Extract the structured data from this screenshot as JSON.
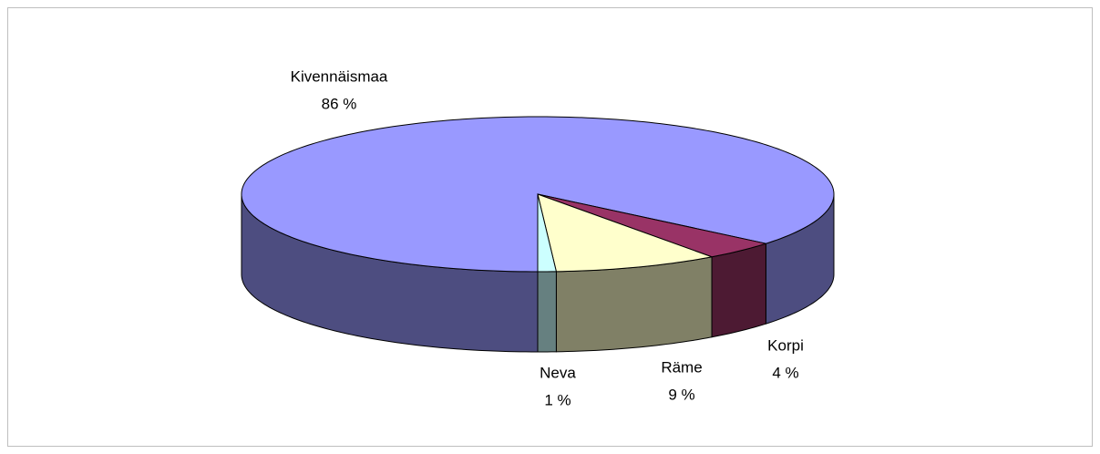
{
  "chart_data": {
    "type": "pie3d",
    "categories": [
      "Kivennäismaa",
      "Korpi",
      "Räme",
      "Neva"
    ],
    "values": [
      86,
      4,
      9,
      1
    ],
    "value_labels": [
      "86 %",
      "4 %",
      "9 %",
      "1 %"
    ],
    "colors": [
      "#9999ff",
      "#993366",
      "#ffffcc",
      "#ccffff"
    ],
    "side_colors": [
      "#4d4d80",
      "#4d1a33",
      "#808066",
      "#668080"
    ]
  }
}
